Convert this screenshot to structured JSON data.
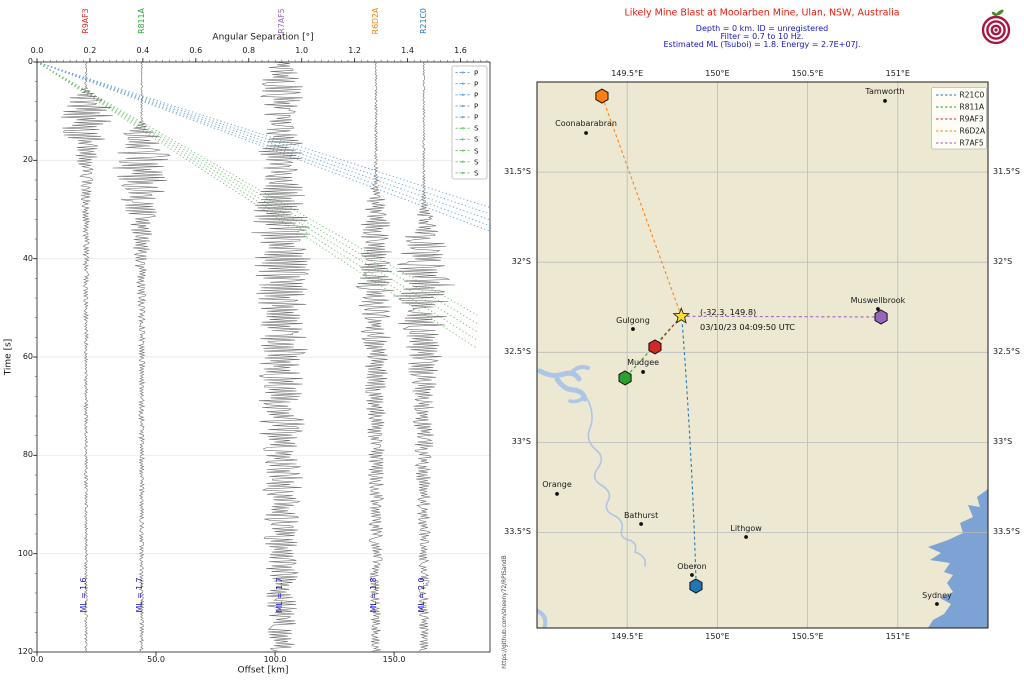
{
  "header": {
    "title": "Likely Mine Blast at Moolarben Mine, Ulan, NSW, Australia",
    "title_color": "#e81a0c",
    "subtitle_color": "#1515d0",
    "subtitle_lines": [
      "Depth = 0 km. ID = unregistered",
      "Filter = 0.7 to 10 Hz.",
      "Estimated ML (Tsuboi) = 1.8. Energy = 2.7E+07J."
    ]
  },
  "watermark": "https://github.com/sheeny72/RPiSandB",
  "logo": {
    "name": "raspberry-shake-logo",
    "ring_color": "#a81540",
    "leaf_color": "#3f8f2f"
  },
  "chart_data": [
    {
      "type": "seismic-record-section",
      "xlabel_top": "Angular Separation [°]",
      "xlabel_bottom": "Offset [km]",
      "ylabel": "Time [s]",
      "xlim_km": [
        0,
        190.3
      ],
      "ylim_s": [
        0,
        120
      ],
      "y_axis_inverted": true,
      "x_top_ticks": [
        {
          "v": 0.0,
          "label": "0.0"
        },
        {
          "v": 0.2,
          "label": "0.2"
        },
        {
          "v": 0.4,
          "label": "0.4"
        },
        {
          "v": 0.6,
          "label": "0.6"
        },
        {
          "v": 0.8,
          "label": "0.8"
        },
        {
          "v": 1.0,
          "label": "1.0"
        },
        {
          "v": 1.2,
          "label": "1.2"
        },
        {
          "v": 1.4,
          "label": "1.4"
        },
        {
          "v": 1.6,
          "label": "1.6"
        }
      ],
      "x_bottom_ticks": [
        {
          "v": 0,
          "label": "0.0"
        },
        {
          "v": 50,
          "label": "50.0"
        },
        {
          "v": 100,
          "label": "100.0"
        },
        {
          "v": 150,
          "label": "150.0"
        }
      ],
      "y_ticks": [
        {
          "v": 0,
          "label": "0"
        },
        {
          "v": 20,
          "label": "20"
        },
        {
          "v": 40,
          "label": "40"
        },
        {
          "v": 60,
          "label": "60"
        },
        {
          "v": 80,
          "label": "80"
        },
        {
          "v": 100,
          "label": "100"
        },
        {
          "v": 120,
          "label": "120"
        }
      ],
      "grid_times_s": [
        20,
        40,
        60,
        80,
        100
      ],
      "trace_color": "#6f6f6f",
      "ml_color": "#1515d0",
      "legend": [
        "P",
        "P",
        "P",
        "P",
        "P",
        "S",
        "S",
        "S",
        "S",
        "S"
      ],
      "p_wave": {
        "label": "P",
        "color": "#6da3d6",
        "end_offset_km": 190.3,
        "end_times_s": [
          29.6,
          30.9,
          32.1,
          33.3,
          34.4
        ]
      },
      "s_wave": {
        "label": "S",
        "color": "#77c077",
        "end_offset_km": 185.0,
        "end_times_s": [
          51.5,
          53.2,
          54.9,
          56.6,
          58.3
        ]
      },
      "stations": [
        {
          "name": "R9AF3",
          "color": "#d62728",
          "offset_km": 20.6,
          "angular_sep_deg": 0.19,
          "ml_value": 1.6,
          "ml_label": "ML = 1.6",
          "envelope_t_amp": [
            [
              0,
              0.8
            ],
            [
              5,
              1.2
            ],
            [
              6,
              6
            ],
            [
              7.5,
              18
            ],
            [
              9,
              26
            ],
            [
              12,
              28
            ],
            [
              15,
              22
            ],
            [
              18,
              14
            ],
            [
              21,
              9
            ],
            [
              25,
              6
            ],
            [
              30,
              4
            ],
            [
              38,
              3
            ],
            [
              50,
              2.2
            ],
            [
              70,
              1.8
            ],
            [
              120,
              1.5
            ]
          ]
        },
        {
          "name": "R811A",
          "color": "#2ca02c",
          "offset_km": 44.0,
          "angular_sep_deg": 0.4,
          "ml_value": 1.7,
          "ml_label": "ML = 1.7",
          "envelope_t_amp": [
            [
              0,
              0.8
            ],
            [
              12,
              1.2
            ],
            [
              13.5,
              10
            ],
            [
              15,
              22
            ],
            [
              18,
              28
            ],
            [
              22,
              30
            ],
            [
              26,
              24
            ],
            [
              30,
              18
            ],
            [
              34,
              12
            ],
            [
              40,
              8
            ],
            [
              46,
              5
            ],
            [
              52,
              3.5
            ],
            [
              60,
              3
            ],
            [
              80,
              2.5
            ],
            [
              120,
              2
            ]
          ]
        },
        {
          "name": "R7AF5",
          "color": "#9467bd",
          "offset_km": 102.8,
          "angular_sep_deg": 0.92,
          "ml_value": 1.7,
          "ml_label": "ML = 1.7",
          "envelope_t_amp": [
            [
              0,
              12
            ],
            [
              3,
              18
            ],
            [
              6,
              24
            ],
            [
              9,
              20
            ],
            [
              12,
              16
            ],
            [
              15,
              20
            ],
            [
              18,
              24
            ],
            [
              21,
              20
            ],
            [
              24,
              18
            ],
            [
              27,
              24
            ],
            [
              30,
              30
            ],
            [
              34,
              32
            ],
            [
              38,
              28
            ],
            [
              42,
              30
            ],
            [
              46,
              26
            ],
            [
              50,
              28
            ],
            [
              54,
              25
            ],
            [
              58,
              27
            ],
            [
              62,
              24
            ],
            [
              66,
              26
            ],
            [
              70,
              22
            ],
            [
              75,
              24
            ],
            [
              80,
              20
            ],
            [
              85,
              22
            ],
            [
              90,
              18
            ],
            [
              95,
              19
            ],
            [
              100,
              16
            ],
            [
              105,
              17
            ],
            [
              110,
              15
            ],
            [
              115,
              16
            ],
            [
              120,
              14
            ]
          ]
        },
        {
          "name": "R6D2A",
          "color": "#ff7f0e",
          "offset_km": 142.4,
          "angular_sep_deg": 1.28,
          "ml_value": 1.8,
          "ml_label": "ML = 1.8",
          "envelope_t_amp": [
            [
              0,
              1
            ],
            [
              10,
              1.3
            ],
            [
              20,
              1.8
            ],
            [
              24,
              2.5
            ],
            [
              26,
              6
            ],
            [
              30,
              12
            ],
            [
              34,
              16
            ],
            [
              40,
              18
            ],
            [
              45,
              20
            ],
            [
              50,
              17
            ],
            [
              55,
              15
            ],
            [
              60,
              13
            ],
            [
              68,
              11
            ],
            [
              76,
              9
            ],
            [
              85,
              8
            ],
            [
              95,
              7
            ],
            [
              105,
              6
            ],
            [
              120,
              5
            ]
          ]
        },
        {
          "name": "R21C0",
          "color": "#1f77b4",
          "offset_km": 162.5,
          "angular_sep_deg": 1.46,
          "ml_value": 2.0,
          "ml_label": "ML = 2.0",
          "envelope_t_amp": [
            [
              0,
              0.8
            ],
            [
              10,
              1
            ],
            [
              20,
              1.3
            ],
            [
              27,
              1.6
            ],
            [
              29,
              4
            ],
            [
              32,
              12
            ],
            [
              36,
              20
            ],
            [
              40,
              26
            ],
            [
              45,
              32
            ],
            [
              50,
              30
            ],
            [
              55,
              26
            ],
            [
              60,
              18
            ],
            [
              66,
              13
            ],
            [
              72,
              11
            ],
            [
              80,
              9
            ],
            [
              90,
              7
            ],
            [
              100,
              6
            ],
            [
              110,
              5
            ],
            [
              120,
              4.5
            ]
          ]
        }
      ]
    },
    {
      "type": "map",
      "extent": {
        "lon": [
          149.0,
          151.5
        ],
        "lat": [
          -34.03,
          -31.0
        ]
      },
      "land_color": "#ece8d2",
      "ocean_color": "#7da3d4",
      "river_color": "#adc6e8",
      "grid_color": "#bbbbbb",
      "lon_ticks": [
        {
          "v": 149.5,
          "label": "149.5°E"
        },
        {
          "v": 150.0,
          "label": "150°E"
        },
        {
          "v": 150.5,
          "label": "150.5°E"
        },
        {
          "v": 151.0,
          "label": "151°E"
        }
      ],
      "lat_ticks": [
        {
          "v": -31.5,
          "label": "31.5°S"
        },
        {
          "v": -32.0,
          "label": "32°S"
        },
        {
          "v": -32.5,
          "label": "32.5°S"
        },
        {
          "v": -33.0,
          "label": "33°S"
        },
        {
          "v": -33.5,
          "label": "33.5°S"
        }
      ],
      "event": {
        "lat": -32.3,
        "lon": 149.8,
        "marker": "star",
        "color": "#ffdf2e",
        "label_line1": "(-32.3, 149.8)",
        "label_line2": "03/10/23 04:09:50 UTC"
      },
      "stations": [
        {
          "name": "R21C0",
          "color": "#1f77b4",
          "lon": 149.881,
          "lat": -33.797
        },
        {
          "name": "R811A",
          "color": "#2ca02c",
          "lon": 149.488,
          "lat": -32.642
        },
        {
          "name": "R9AF3",
          "color": "#d62728",
          "lon": 149.654,
          "lat": -32.47
        },
        {
          "name": "R6D2A",
          "color": "#ff7f0e",
          "lon": 149.36,
          "lat": -31.078
        },
        {
          "name": "R7AF5",
          "color": "#9467bd",
          "lon": 150.907,
          "lat": -32.304
        }
      ],
      "legend_order": [
        "R21C0",
        "R811A",
        "R9AF3",
        "R6D2A",
        "R7AF5"
      ],
      "cities": [
        {
          "name": "Coonabarabran",
          "lon": 149.272,
          "lat": -31.283
        },
        {
          "name": "Tamworth",
          "lon": 150.929,
          "lat": -31.105
        },
        {
          "name": "Gulgong",
          "lon": 149.532,
          "lat": -32.371
        },
        {
          "name": "Mudgee",
          "lon": 149.588,
          "lat": -32.609
        },
        {
          "name": "Muswellbrook",
          "lon": 150.89,
          "lat": -32.26
        },
        {
          "name": "Orange",
          "lon": 149.111,
          "lat": -33.286
        },
        {
          "name": "Bathurst",
          "lon": 149.577,
          "lat": -33.453
        },
        {
          "name": "Lithgow",
          "lon": 150.159,
          "lat": -33.525
        },
        {
          "name": "Oberon",
          "lon": 149.859,
          "lat": -33.736
        },
        {
          "name": "Sydney",
          "lon": 151.217,
          "lat": -33.897
        }
      ]
    }
  ]
}
